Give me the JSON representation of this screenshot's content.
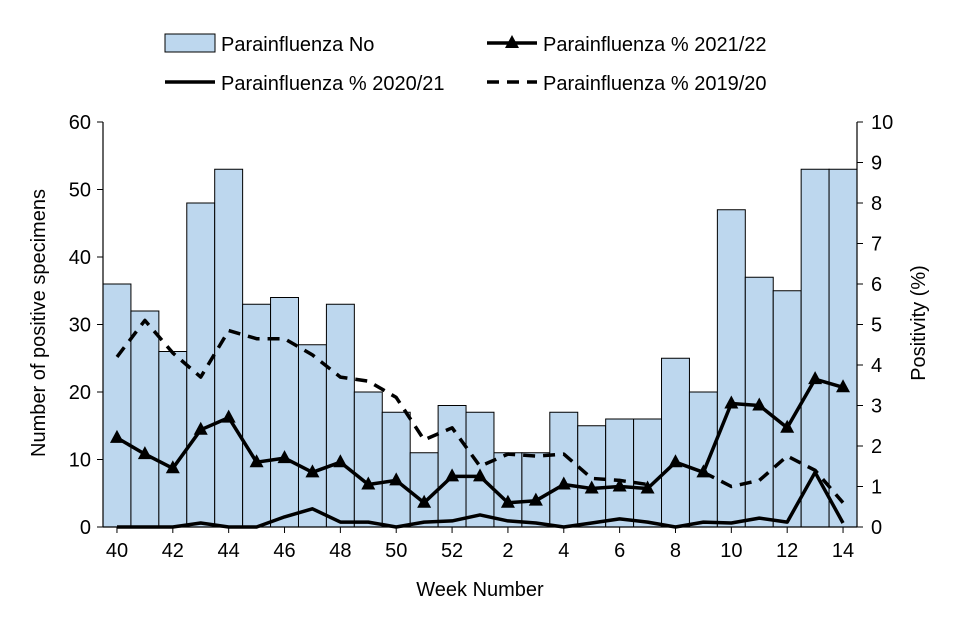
{
  "chart_data": {
    "type": "bar",
    "weeks": [
      "40",
      "41",
      "42",
      "43",
      "44",
      "45",
      "46",
      "47",
      "48",
      "49",
      "50",
      "51",
      "52",
      "53",
      "1",
      "2",
      "3",
      "4",
      "5",
      "6",
      "7",
      "8",
      "9",
      "10",
      "11",
      "12",
      "13",
      "14"
    ],
    "x_tick_labels": [
      "40",
      "42",
      "44",
      "46",
      "48",
      "50",
      "52",
      "2",
      "4",
      "6",
      "8",
      "10",
      "12",
      "14"
    ],
    "xlabel": "Week Number",
    "ylabel": "Number of positive specimens",
    "y2label": "Positivity (%)",
    "ylim": [
      0,
      60
    ],
    "y_ticks": [
      0,
      10,
      20,
      30,
      40,
      50,
      60
    ],
    "y2lim": [
      0,
      10
    ],
    "y2_ticks": [
      0,
      1,
      2,
      3,
      4,
      5,
      6,
      7,
      8,
      9,
      10
    ],
    "series": [
      {
        "name": "Parainfluenza No",
        "kind": "bar",
        "axis": "left",
        "color": "#bdd7ee",
        "values": [
          36,
          32,
          26,
          48,
          53,
          33,
          34,
          27,
          33,
          20,
          17,
          11,
          18,
          17,
          11,
          11,
          17,
          15,
          16,
          16,
          25,
          20,
          47,
          37,
          35,
          53,
          53
        ]
      },
      {
        "name": "Parainfluenza % 2021/22",
        "kind": "line",
        "marker": "triangle",
        "axis": "right",
        "color": "#000000",
        "values": [
          2.2,
          1.8,
          1.45,
          2.4,
          2.7,
          1.6,
          1.7,
          1.35,
          1.6,
          1.05,
          1.15,
          0.6,
          1.25,
          1.25,
          0.6,
          0.65,
          1.05,
          0.95,
          1.0,
          0.95,
          1.6,
          1.35,
          3.05,
          3.0,
          2.45,
          3.65,
          3.45
        ]
      },
      {
        "name": "Parainfluenza % 2020/21",
        "kind": "line",
        "dash": "solid",
        "axis": "right",
        "color": "#000000",
        "values": [
          0,
          0,
          0,
          0.1,
          0,
          0,
          0.25,
          0.45,
          0.12,
          0.12,
          0,
          0.12,
          0.15,
          0.3,
          0.15,
          0.1,
          0,
          0.1,
          0.2,
          0.12,
          0,
          0.12,
          0.1,
          0.22,
          0.12,
          1.35,
          0.1
        ]
      },
      {
        "name": "Parainfluenza % 2019/20",
        "kind": "line",
        "dash": "dashed",
        "axis": "right",
        "color": "#000000",
        "values": [
          4.2,
          5.1,
          4.3,
          3.7,
          4.85,
          4.65,
          4.65,
          4.25,
          3.7,
          3.6,
          3.2,
          2.15,
          2.45,
          1.5,
          1.8,
          1.75,
          1.8,
          1.2,
          1.15,
          1.05,
          null,
          1.35,
          1.0,
          1.15,
          1.75,
          1.4,
          0.6
        ]
      }
    ],
    "legend": {
      "position": "top",
      "entries": [
        "Parainfluenza No",
        "Parainfluenza % 2021/22",
        "Parainfluenza % 2020/21",
        "Parainfluenza % 2019/20"
      ]
    },
    "grid": false
  }
}
